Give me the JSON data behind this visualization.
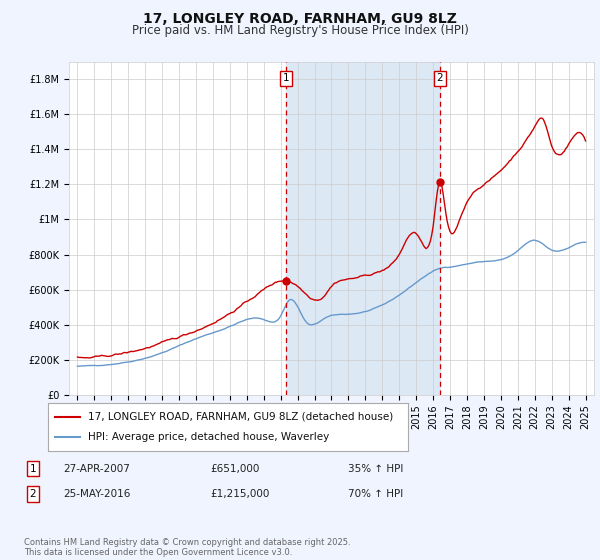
{
  "title": "17, LONGLEY ROAD, FARNHAM, GU9 8LZ",
  "subtitle": "Price paid vs. HM Land Registry's House Price Index (HPI)",
  "legend_label_red": "17, LONGLEY ROAD, FARNHAM, GU9 8LZ (detached house)",
  "legend_label_blue": "HPI: Average price, detached house, Waverley",
  "footnote": "Contains HM Land Registry data © Crown copyright and database right 2025.\nThis data is licensed under the Open Government Licence v3.0.",
  "table_rows": [
    {
      "num": "1",
      "date": "27-APR-2007",
      "price": "£651,000",
      "change": "35% ↑ HPI"
    },
    {
      "num": "2",
      "date": "25-MAY-2016",
      "price": "£1,215,000",
      "change": "70% ↑ HPI"
    }
  ],
  "sale1_year": 2007.32,
  "sale2_year": 2016.4,
  "sale1_price": 651000,
  "sale2_price": 1215000,
  "ylim": [
    0,
    1900000
  ],
  "xlim_start": 1994.5,
  "xlim_end": 2025.5,
  "background_color": "#f0f4ff",
  "plot_bg_color": "#ffffff",
  "grid_color": "#cccccc",
  "red_line_color": "#cc0000",
  "blue_line_color": "#6699cc",
  "dashed_line_color": "#cc0000",
  "highlight_fill": "#dde8f5",
  "title_fontsize": 10,
  "subtitle_fontsize": 8.5,
  "tick_fontsize": 7,
  "legend_fontsize": 7.5,
  "footnote_fontsize": 6
}
